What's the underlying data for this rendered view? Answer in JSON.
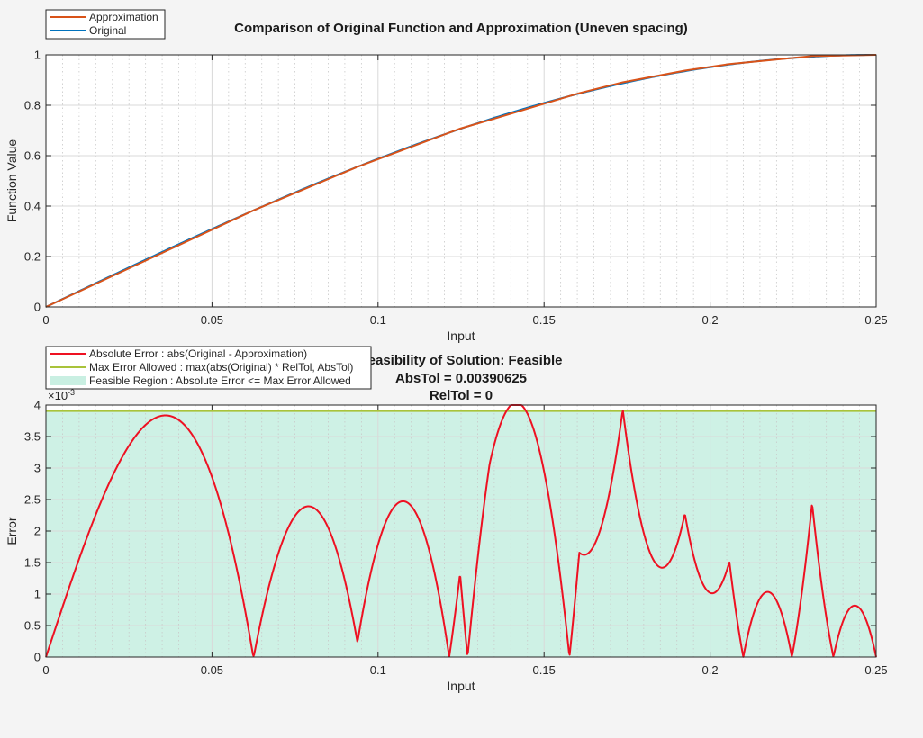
{
  "colors": {
    "approximation": "#d95319",
    "original": "#0072bd",
    "abs_error": "#ee1122",
    "max_error": "#a9c33a",
    "feasible_region": "#c9efe2",
    "background": "#f4f4f4"
  },
  "chart_data": [
    {
      "type": "line",
      "title": "Comparison of Original Function and Approximation (Uneven spacing)",
      "xlabel": "Input",
      "ylabel": "Function Value",
      "xlim": [
        0,
        0.25
      ],
      "ylim": [
        0,
        1
      ],
      "xticks": [
        "0",
        "0.05",
        "0.1",
        "0.15",
        "0.2",
        "0.25"
      ],
      "yticks": [
        "0",
        "0.2",
        "0.4",
        "0.6",
        "0.8",
        "1"
      ],
      "grid": true,
      "minor_grid_x": true,
      "legend_position": "top-left",
      "breakpoints": [
        0,
        0.0625,
        0.0938,
        0.1247,
        0.1336,
        0.1606,
        0.1737,
        0.1924,
        0.2058,
        0.2307,
        0.25
      ],
      "series": [
        {
          "name": "Approximation",
          "color_key": "approximation",
          "x": [
            0,
            0.0625,
            0.0938,
            0.1247,
            0.1336,
            0.1606,
            0.1737,
            0.1924,
            0.2058,
            0.2307,
            0.25
          ],
          "y": [
            0,
            0.3827,
            0.5556,
            0.7071,
            0.7412,
            0.848,
            0.8912,
            0.9375,
            0.9632,
            0.9951,
            1.0
          ]
        },
        {
          "name": "Original",
          "color_key": "original",
          "function": "sin(2*pi*x)",
          "x_range": [
            0,
            0.25
          ]
        }
      ]
    },
    {
      "type": "area",
      "title_lines": [
        "Feasibility of Solution: Feasible",
        "AbsTol = 0.00390625",
        "RelTol = 0"
      ],
      "xlabel": "Input",
      "ylabel": "Error",
      "y_exponent": "×10",
      "y_exponent_power": "-3",
      "xlim": [
        0,
        0.25
      ],
      "ylim": [
        0,
        0.004
      ],
      "xticks": [
        "0",
        "0.05",
        "0.1",
        "0.15",
        "0.2",
        "0.25"
      ],
      "yticks": [
        "0",
        "0.5",
        "1",
        "1.5",
        "2",
        "2.5",
        "3",
        "3.5",
        "4"
      ],
      "grid": true,
      "minor_grid_x": true,
      "legend_position": "top-left",
      "max_error_allowed": 0.00390625,
      "series": [
        {
          "name": "Absolute Error : abs(Original - Approximation)",
          "color_key": "abs_error",
          "kind": "line"
        },
        {
          "name": "Max Error Allowed : max(abs(Original) * RelTol, AbsTol)",
          "color_key": "max_error",
          "kind": "line"
        },
        {
          "name": "Feasible Region : Absolute Error <= Max Error Allowed",
          "color_key": "feasible_region",
          "kind": "patch"
        }
      ]
    }
  ]
}
